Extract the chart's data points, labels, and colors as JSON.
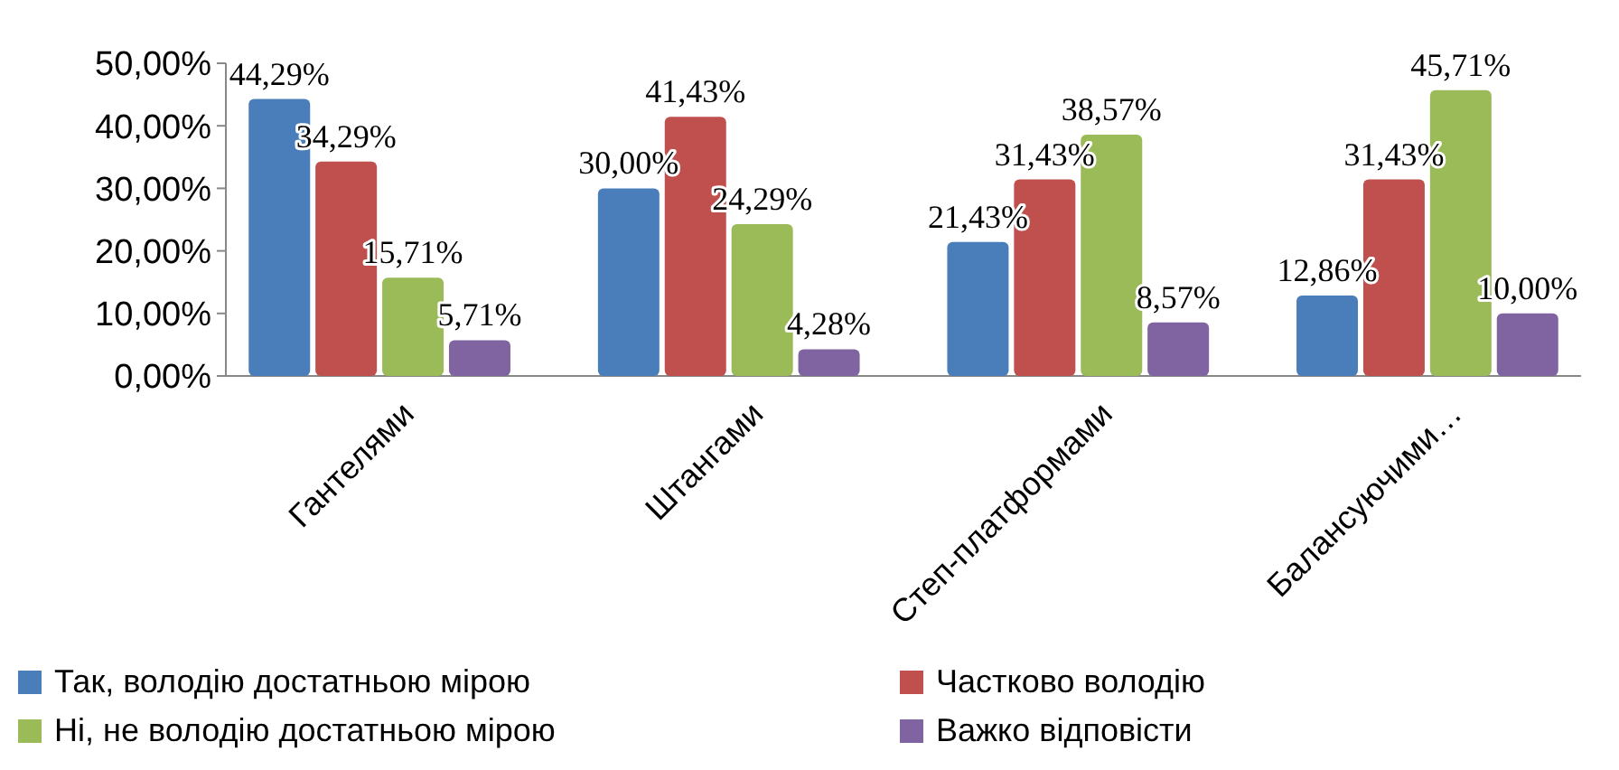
{
  "chart_data": {
    "type": "bar",
    "categories": [
      "Гантелями",
      "Штангами",
      "Степ-платформами",
      "Балансуючими…"
    ],
    "ylim": [
      0,
      50
    ],
    "yticks": [
      {
        "value": 0,
        "label": "0,00%"
      },
      {
        "value": 10,
        "label": "10,00%"
      },
      {
        "value": 20,
        "label": "20,00%"
      },
      {
        "value": 30,
        "label": "30,00%"
      },
      {
        "value": 40,
        "label": "40,00%"
      },
      {
        "value": 50,
        "label": "50,00%"
      }
    ],
    "grid": false,
    "legend": "bottom",
    "series": [
      {
        "name": "Так, володію достатньою мірою",
        "color": "#4a7ebb",
        "values": [
          44.29,
          30.0,
          21.43,
          12.86
        ],
        "value_labels": [
          "44,29%",
          "30,00%",
          "21,43%",
          "12,86%"
        ]
      },
      {
        "name": "Частково володію",
        "color": "#c0504d",
        "values": [
          34.29,
          41.43,
          31.43,
          31.43
        ],
        "value_labels": [
          "34,29%",
          "41,43%",
          "31,43%",
          "31,43%"
        ]
      },
      {
        "name": "Ні, не володію достатньою мірою",
        "color": "#9bbb59",
        "values": [
          15.71,
          24.29,
          38.57,
          45.71
        ],
        "value_labels": [
          "15,71%",
          "24,29%",
          "38,57%",
          "45,71%"
        ]
      },
      {
        "name": "Важко відповісти",
        "color": "#8064a2",
        "values": [
          5.71,
          4.28,
          8.57,
          10.0
        ],
        "value_labels": [
          "5,71%",
          "4,28%",
          "8,57%",
          "10,00%"
        ]
      }
    ]
  }
}
